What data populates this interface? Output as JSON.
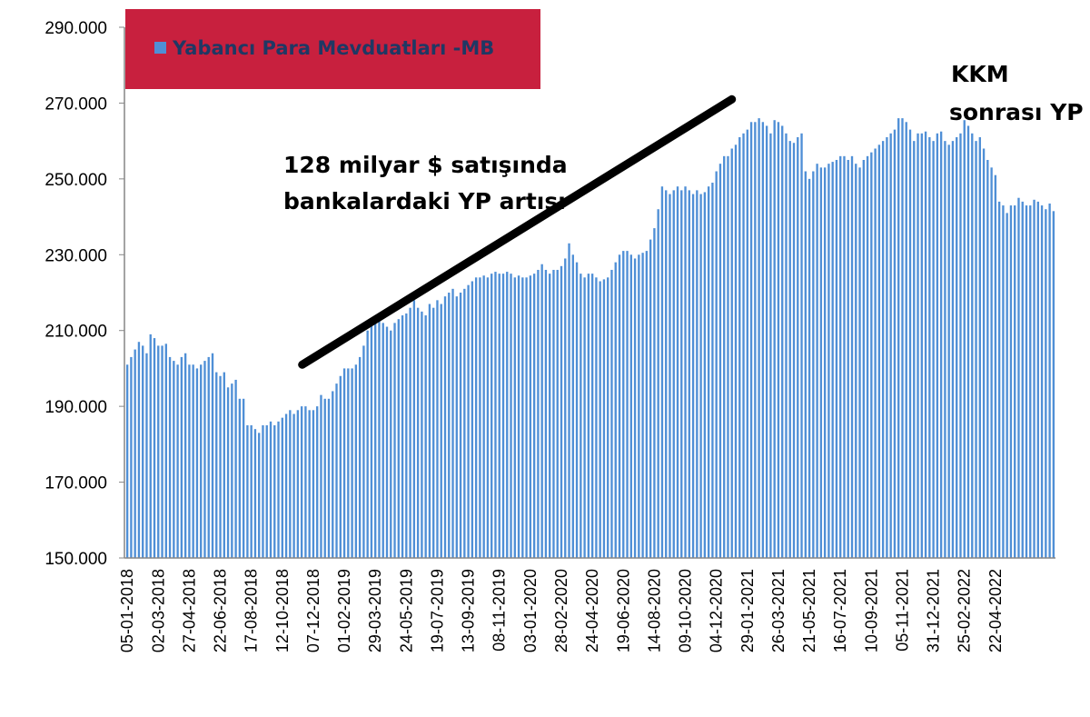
{
  "chart_data": {
    "type": "bar",
    "title": "",
    "xlabel": "",
    "ylabel": "",
    "ylim": [
      150000,
      290000
    ],
    "yticks": [
      "150.000",
      "170.000",
      "190.000",
      "210.000",
      "230.000",
      "250.000",
      "270.000",
      "290.000"
    ],
    "ytick_values": [
      150000,
      170000,
      190000,
      210000,
      230000,
      250000,
      270000,
      290000
    ],
    "xticks": [
      "05-01-2018",
      "02-03-2018",
      "27-04-2018",
      "22-06-2018",
      "17-08-2018",
      "12-10-2018",
      "07-12-2018",
      "01-02-2019",
      "29-03-2019",
      "24-05-2019",
      "19-07-2019",
      "13-09-2019",
      "08-11-2019",
      "03-01-2020",
      "28-02-2020",
      "24-04-2020",
      "19-06-2020",
      "14-08-2020",
      "09-10-2020",
      "04-12-2020",
      "29-01-2021",
      "26-03-2021",
      "21-05-2021",
      "16-07-2021",
      "10-09-2021",
      "05-11-2021",
      "31-12-2021",
      "25-02-2022",
      "22-04-2022"
    ],
    "series": [
      {
        "name": "Yabancı Para Mevduatları -MB",
        "color": "#4f8fd6",
        "values": [
          201000,
          203000,
          205000,
          207000,
          206000,
          204000,
          209000,
          208000,
          206000,
          206000,
          206500,
          203000,
          202000,
          201000,
          203000,
          204000,
          201000,
          201000,
          200000,
          201000,
          202000,
          203000,
          204000,
          199000,
          198000,
          199000,
          195000,
          196000,
          197000,
          192000,
          192000,
          185000,
          185000,
          184000,
          183000,
          185000,
          185000,
          186000,
          185000,
          186000,
          187000,
          188000,
          189000,
          188000,
          189000,
          190000,
          190000,
          189000,
          189000,
          190000,
          193000,
          192000,
          192000,
          194000,
          196000,
          198000,
          200000,
          200000,
          200000,
          201000,
          203000,
          206000,
          210000,
          212000,
          214000,
          213000,
          212000,
          211000,
          210000,
          212000,
          213000,
          214000,
          214500,
          216000,
          218000,
          216000,
          215000,
          214000,
          217000,
          216000,
          218000,
          217000,
          219000,
          220000,
          221000,
          219000,
          220000,
          221000,
          222000,
          223000,
          224000,
          224000,
          224500,
          224000,
          225000,
          225500,
          225000,
          225000,
          225500,
          225000,
          224000,
          224500,
          224000,
          224000,
          224500,
          225000,
          226000,
          227500,
          226000,
          225000,
          226000,
          226000,
          227000,
          229000,
          233000,
          230000,
          228000,
          225000,
          224000,
          225000,
          225000,
          224000,
          223000,
          223500,
          224000,
          226000,
          228000,
          230000,
          231000,
          231000,
          230000,
          229000,
          230000,
          230500,
          231000,
          234000,
          237000,
          242000,
          248000,
          247000,
          246000,
          247000,
          248000,
          247000,
          248000,
          247000,
          246000,
          247000,
          246000,
          246500,
          248000,
          249000,
          252000,
          254000,
          256000,
          256000,
          258000,
          259000,
          261000,
          262000,
          263000,
          265000,
          265000,
          266000,
          265000,
          264000,
          262000,
          265500,
          265000,
          264000,
          262000,
          260000,
          259500,
          261000,
          262000,
          252000,
          250000,
          252000,
          254000,
          253000,
          253000,
          254000,
          254500,
          255000,
          256000,
          256000,
          255000,
          256000,
          254000,
          253000,
          255000,
          256000,
          257000,
          258000,
          259000,
          260000,
          261000,
          262000,
          263000,
          266000,
          266000,
          265000,
          263000,
          260000,
          262000,
          262000,
          262500,
          261000,
          260000,
          262000,
          262500,
          260000,
          259000,
          260000,
          261000,
          262000,
          265500,
          264000,
          262000,
          260000,
          261000,
          258000,
          255000,
          253000,
          251000,
          244000,
          243000,
          241000,
          243000,
          243000,
          245000,
          244000,
          243000,
          243000,
          244500,
          244000,
          243000,
          242000,
          243500,
          241500
        ]
      }
    ],
    "legend": {
      "label": "Yabancı Para Mevduatları -MB",
      "placement": "top-left",
      "background": "#c8203e",
      "marker_color": "#4f8fd6"
    },
    "annotations": [
      {
        "id": "trend",
        "lines": [
          "128 milyar $ satışında",
          "bankalardaki YP artışı"
        ]
      },
      {
        "id": "kkm",
        "lines": [
          "KKM",
          "sonrası YP"
        ]
      }
    ],
    "trend_line": {
      "color": "#000000",
      "from": [
        "17-11-2018",
        201000
      ],
      "to": [
        "01-01-2021",
        271000
      ]
    },
    "grid": false,
    "colors": {
      "bars": "#4f8fd6",
      "legend_box": "#c8203e",
      "axis": "#868686"
    }
  }
}
